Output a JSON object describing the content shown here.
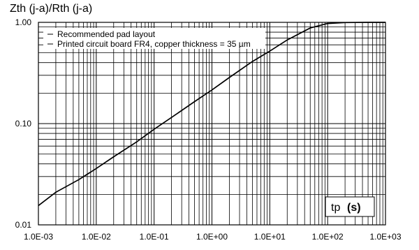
{
  "chart_data": {
    "type": "line",
    "title": "",
    "ylabel": "Zth (j-a)/Rth (j-a)",
    "xlabel": "tp (s)",
    "xlabel_parts": {
      "name": "tp",
      "unit": "(s)"
    },
    "xscale": "log",
    "yscale": "log",
    "xlim": [
      0.001,
      1000
    ],
    "ylim": [
      0.01,
      1.0
    ],
    "x_tick_labels": [
      "1.0E-03",
      "1.0E-02",
      "1.0E-01",
      "1.0E+00",
      "1.0E+01",
      "1.0E+02",
      "1.0E+03"
    ],
    "y_tick_labels": [
      "0.01",
      "0.10",
      "1.00"
    ],
    "grid": true,
    "legend_placement": "top-left",
    "annotations": [
      "Recommended pad layout",
      "Printed circuit board FR4, copper thickness = 35 µm"
    ],
    "series": [
      {
        "x": [
          0.001,
          0.002,
          0.005,
          0.01,
          0.02,
          0.05,
          0.1,
          0.2,
          0.5,
          1,
          2,
          5,
          10,
          20,
          50,
          100,
          200,
          500,
          1000
        ],
        "y": [
          0.0155,
          0.021,
          0.028,
          0.036,
          0.047,
          0.066,
          0.088,
          0.115,
          0.165,
          0.215,
          0.285,
          0.41,
          0.52,
          0.67,
          0.88,
          0.975,
          0.996,
          1.0,
          1.0
        ]
      }
    ],
    "line_color": "#000000",
    "grid_color": "#000000"
  }
}
